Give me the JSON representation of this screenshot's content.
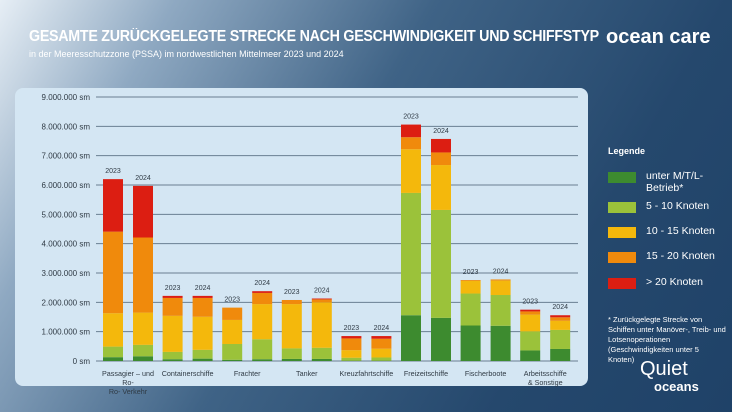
{
  "header": {
    "title": "GESAMTE ZURÜCKGELEGTE STRECKE NACH GESCHWINDIGKEIT UND SCHIFFSTYP",
    "subtitle": "in der Meeresschutzzone (PSSA) im nordwestlichen Mittelmeer 2023 und 2024",
    "logo": "ocean care",
    "logo2_line1": "Quiet",
    "logo2_line2": "oceans"
  },
  "legend": {
    "title": "Legende",
    "items": [
      "unter M/T/L-Betrieb*",
      "5 - 10 Knoten",
      "10 - 15 Knoten",
      "15 - 20 Knoten",
      "> 20 Knoten"
    ],
    "note": "* Zurückgelegte Strecke von Schiffen unter Manöver-, Treib- und Lotsenoperationen (Geschwindigkeiten unter 5 Knoten)"
  },
  "chart_data": {
    "type": "bar",
    "stacked": true,
    "title": "GESAMTE ZURÜCKGELEGTE STRECKE NACH GESCHWINDIGKEIT UND SCHIFFSTYP",
    "ylim": [
      0,
      9000000
    ],
    "yticks": [
      "0 sm",
      "1.000.000 sm",
      "2.000.000 sm",
      "3.000.000 sm",
      "4.000.000 sm",
      "5.000.000 sm",
      "6.000.000 sm",
      "7.000.000 sm",
      "8.000.000 sm",
      "9.000.000 sm"
    ],
    "grid": true,
    "legend_position": "right",
    "categories": [
      "Passagier – und Ro- Ro- Verkehr",
      "Containerschiffe",
      "Frachter",
      "Tanker",
      "Kreuzfahrtschiffe",
      "Freizeitschiffe",
      "Fischerboote",
      "Arbeitsschiffe & Sonstige"
    ],
    "years": [
      "2023",
      "2024"
    ],
    "series": [
      {
        "name": "unter M/T/L-Betrieb*",
        "color": "#3d8b2f",
        "values": [
          [
            130000,
            160000
          ],
          [
            60000,
            80000
          ],
          [
            40000,
            60000
          ],
          [
            70000,
            70000
          ],
          [
            10000,
            10000
          ],
          [
            1560000,
            1470000
          ],
          [
            1210000,
            1200000
          ],
          [
            360000,
            410000
          ]
        ]
      },
      {
        "name": "5 - 10 Knoten",
        "color": "#9bc23a",
        "values": [
          [
            360000,
            390000
          ],
          [
            250000,
            300000
          ],
          [
            540000,
            680000
          ],
          [
            360000,
            380000
          ],
          [
            100000,
            110000
          ],
          [
            4170000,
            3680000
          ],
          [
            1090000,
            1050000
          ],
          [
            650000,
            650000
          ]
        ]
      },
      {
        "name": "10 - 15 Knoten",
        "color": "#f4b80c",
        "values": [
          [
            1140000,
            1100000
          ],
          [
            1230000,
            1130000
          ],
          [
            820000,
            1200000
          ],
          [
            1510000,
            1550000
          ],
          [
            260000,
            300000
          ],
          [
            1490000,
            1530000
          ],
          [
            430000,
            490000
          ],
          [
            570000,
            310000
          ]
        ]
      },
      {
        "name": "15 - 20 Knoten",
        "color": "#f08a0c",
        "values": [
          [
            2780000,
            2560000
          ],
          [
            610000,
            640000
          ],
          [
            420000,
            380000
          ],
          [
            140000,
            100000
          ],
          [
            400000,
            340000
          ],
          [
            410000,
            430000
          ],
          [
            30000,
            40000
          ],
          [
            110000,
            120000
          ]
        ]
      },
      {
        "name": "> 20 Knoten",
        "color": "#dc1e12",
        "values": [
          [
            1790000,
            1760000
          ],
          [
            70000,
            70000
          ],
          [
            0,
            60000
          ],
          [
            0,
            30000
          ],
          [
            80000,
            90000
          ],
          [
            430000,
            460000
          ],
          [
            0,
            0
          ],
          [
            60000,
            70000
          ]
        ]
      }
    ]
  }
}
